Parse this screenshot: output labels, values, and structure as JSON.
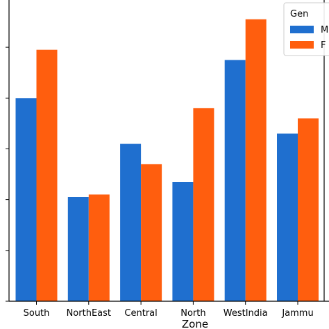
{
  "chart_data": {
    "type": "bar",
    "title": "",
    "xlabel": "Zone",
    "ylabel": "",
    "categories": [
      "South",
      "NorthEast",
      "Central",
      "North",
      "WestIndia",
      "Jammu"
    ],
    "series": [
      {
        "name": "M",
        "color": "#1f6fcf",
        "values": [
          40,
          20.5,
          31,
          23.5,
          47.5,
          33
        ]
      },
      {
        "name": "F",
        "color": "#ff5e0e",
        "values": [
          49.5,
          21,
          27,
          38,
          55.5,
          36
        ]
      }
    ],
    "ylim": [
      0,
      59.3
    ],
    "grid": false,
    "legend": {
      "title": "Gen",
      "placement": "top-right",
      "entries": [
        "M",
        "F"
      ]
    }
  }
}
